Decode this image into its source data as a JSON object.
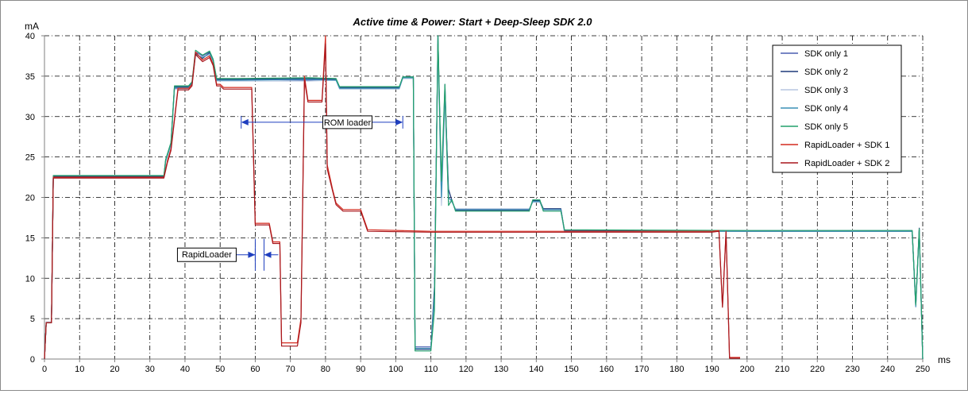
{
  "chart_data": {
    "type": "line",
    "title": "Active time & Power:  Start + Deep-Sleep SDK 2.0",
    "ylabel": "mA",
    "xlabel": "ms",
    "xlim": [
      0,
      250
    ],
    "ylim": [
      0,
      40
    ],
    "x_ticks": [
      0,
      10,
      20,
      30,
      40,
      50,
      60,
      70,
      80,
      90,
      100,
      110,
      120,
      130,
      140,
      150,
      160,
      170,
      180,
      190,
      200,
      210,
      220,
      230,
      240,
      250
    ],
    "y_ticks": [
      0,
      5,
      10,
      15,
      20,
      25,
      30,
      35,
      40
    ],
    "grid": true,
    "legend_position": "top-right",
    "series": [
      {
        "name": "SDK only 1",
        "color": "#4a5fb0",
        "points": [
          [
            0,
            0
          ],
          [
            0.5,
            4.5
          ],
          [
            2,
            4.5
          ],
          [
            2.5,
            22.5
          ],
          [
            34,
            22.5
          ],
          [
            34.5,
            24.5
          ],
          [
            36,
            26.5
          ],
          [
            37,
            33.5
          ],
          [
            41,
            33.5
          ],
          [
            42,
            34
          ],
          [
            43,
            38
          ],
          [
            45,
            37.5
          ],
          [
            47,
            38
          ],
          [
            48,
            37
          ],
          [
            49,
            34.5
          ],
          [
            55,
            34.5
          ],
          [
            56,
            34.6
          ],
          [
            75,
            34.5
          ],
          [
            83,
            34.6
          ],
          [
            84,
            33.5
          ],
          [
            101,
            33.5
          ],
          [
            102,
            34.8
          ],
          [
            105,
            34.8
          ],
          [
            105.5,
            1.5
          ],
          [
            110,
            1.5
          ],
          [
            111,
            8
          ],
          [
            112,
            40
          ],
          [
            113,
            20
          ],
          [
            114,
            34
          ],
          [
            115,
            20
          ],
          [
            116,
            19.5
          ],
          [
            117,
            18.5
          ],
          [
            138,
            18.5
          ],
          [
            139,
            19.5
          ],
          [
            141,
            19.5
          ],
          [
            142,
            18.5
          ],
          [
            147,
            18.5
          ],
          [
            148,
            15.8
          ],
          [
            170,
            15.8
          ],
          [
            200,
            15.9
          ],
          [
            247,
            15.9
          ],
          [
            248,
            6.5
          ],
          [
            249,
            16
          ],
          [
            250,
            0
          ]
        ]
      },
      {
        "name": "SDK only 2",
        "color": "#1f3a7a",
        "points": [
          [
            0,
            0
          ],
          [
            0.5,
            4.5
          ],
          [
            2,
            4.5
          ],
          [
            2.5,
            22.6
          ],
          [
            34,
            22.6
          ],
          [
            34.5,
            24.6
          ],
          [
            36,
            26.7
          ],
          [
            37,
            33.7
          ],
          [
            41,
            33.7
          ],
          [
            42,
            34.2
          ],
          [
            43,
            37.8
          ],
          [
            45,
            37.2
          ],
          [
            47,
            37.9
          ],
          [
            48,
            37
          ],
          [
            49,
            34.6
          ],
          [
            55,
            34.6
          ],
          [
            75,
            34.7
          ],
          [
            83,
            34.6
          ],
          [
            84,
            33.6
          ],
          [
            101,
            33.6
          ],
          [
            102,
            34.9
          ],
          [
            105,
            34.9
          ],
          [
            105.5,
            1.2
          ],
          [
            110,
            1.2
          ],
          [
            111,
            9
          ],
          [
            112,
            39
          ],
          [
            113,
            21
          ],
          [
            114,
            33
          ],
          [
            115,
            21
          ],
          [
            116,
            19.6
          ],
          [
            117,
            18.4
          ],
          [
            138,
            18.4
          ],
          [
            139,
            19.6
          ],
          [
            141,
            19.6
          ],
          [
            142,
            18.6
          ],
          [
            147,
            18.6
          ],
          [
            148,
            15.9
          ],
          [
            200,
            15.8
          ],
          [
            247,
            15.8
          ],
          [
            248,
            6.6
          ],
          [
            249,
            16.2
          ],
          [
            250,
            0
          ]
        ]
      },
      {
        "name": "SDK only 3",
        "color": "#b7c6e0",
        "points": [
          [
            0,
            0
          ],
          [
            0.5,
            4.6
          ],
          [
            2,
            4.6
          ],
          [
            2.5,
            22.4
          ],
          [
            34,
            22.4
          ],
          [
            34.5,
            24.4
          ],
          [
            36,
            26.4
          ],
          [
            37,
            33.4
          ],
          [
            41,
            33.4
          ],
          [
            42,
            33.9
          ],
          [
            43,
            37.6
          ],
          [
            45,
            37.4
          ],
          [
            47,
            37.6
          ],
          [
            48,
            36.8
          ],
          [
            49,
            34.4
          ],
          [
            55,
            34.4
          ],
          [
            75,
            34.4
          ],
          [
            83,
            34.5
          ],
          [
            84,
            33.4
          ],
          [
            101,
            33.4
          ],
          [
            102,
            34.7
          ],
          [
            105,
            34.7
          ],
          [
            105.5,
            1.4
          ],
          [
            110,
            1.4
          ],
          [
            111,
            7
          ],
          [
            112,
            38
          ],
          [
            113,
            19
          ],
          [
            114,
            32
          ],
          [
            115,
            19.5
          ],
          [
            116,
            19.4
          ],
          [
            117,
            18.6
          ],
          [
            138,
            18.6
          ],
          [
            139,
            19.4
          ],
          [
            141,
            19.4
          ],
          [
            142,
            18.4
          ],
          [
            147,
            18.4
          ],
          [
            148,
            15.7
          ],
          [
            200,
            15.9
          ],
          [
            247,
            15.9
          ],
          [
            248,
            6.4
          ],
          [
            249,
            15.8
          ],
          [
            250,
            0
          ]
        ]
      },
      {
        "name": "SDK only 4",
        "color": "#3a8fb5",
        "points": [
          [
            0,
            0
          ],
          [
            0.5,
            4.5
          ],
          [
            2,
            4.5
          ],
          [
            2.5,
            22.5
          ],
          [
            34,
            22.5
          ],
          [
            34.5,
            24.5
          ],
          [
            36,
            26.6
          ],
          [
            37,
            33.6
          ],
          [
            41,
            33.6
          ],
          [
            42,
            34.1
          ],
          [
            43,
            37.7
          ],
          [
            45,
            37.3
          ],
          [
            47,
            37.8
          ],
          [
            48,
            36.9
          ],
          [
            49,
            34.5
          ],
          [
            55,
            34.5
          ],
          [
            75,
            34.6
          ],
          [
            83,
            34.5
          ],
          [
            84,
            33.5
          ],
          [
            101,
            33.5
          ],
          [
            102,
            34.8
          ],
          [
            105,
            34.8
          ],
          [
            105.5,
            1.3
          ],
          [
            110,
            1.3
          ],
          [
            111,
            8
          ],
          [
            112,
            40
          ],
          [
            113,
            20
          ],
          [
            114,
            33
          ],
          [
            115,
            20
          ],
          [
            116,
            19.5
          ],
          [
            117,
            18.5
          ],
          [
            138,
            18.5
          ],
          [
            139,
            19.5
          ],
          [
            141,
            19.5
          ],
          [
            142,
            18.5
          ],
          [
            147,
            18.5
          ],
          [
            148,
            15.8
          ],
          [
            200,
            15.8
          ],
          [
            247,
            15.8
          ],
          [
            248,
            6.5
          ],
          [
            249,
            16
          ],
          [
            250,
            0
          ]
        ]
      },
      {
        "name": "SDK only 5",
        "color": "#22a06b",
        "points": [
          [
            0,
            0
          ],
          [
            0.5,
            4.5
          ],
          [
            2,
            4.5
          ],
          [
            2.5,
            22.7
          ],
          [
            34,
            22.7
          ],
          [
            34.5,
            24.7
          ],
          [
            36,
            26.8
          ],
          [
            37,
            33.8
          ],
          [
            41,
            33.8
          ],
          [
            42,
            34.3
          ],
          [
            43,
            38.2
          ],
          [
            45,
            37.6
          ],
          [
            47,
            38.1
          ],
          [
            48,
            37.1
          ],
          [
            49,
            34.7
          ],
          [
            55,
            34.7
          ],
          [
            75,
            34.8
          ],
          [
            83,
            34.7
          ],
          [
            84,
            33.7
          ],
          [
            101,
            33.7
          ],
          [
            102,
            34.9
          ],
          [
            105,
            34.9
          ],
          [
            105.5,
            1.0
          ],
          [
            110,
            1.0
          ],
          [
            111,
            6
          ],
          [
            112,
            40
          ],
          [
            113,
            22
          ],
          [
            114,
            34
          ],
          [
            115,
            19
          ],
          [
            116,
            19.7
          ],
          [
            117,
            18.3
          ],
          [
            138,
            18.3
          ],
          [
            139,
            19.7
          ],
          [
            141,
            19.7
          ],
          [
            142,
            18.3
          ],
          [
            147,
            18.3
          ],
          [
            148,
            16.0
          ],
          [
            200,
            15.9
          ],
          [
            247,
            15.9
          ],
          [
            248,
            6.7
          ],
          [
            249,
            16.1
          ],
          [
            250,
            0
          ]
        ]
      },
      {
        "name": "RapidLoader + SDK 1",
        "color": "#d42a1e",
        "points": [
          [
            0,
            0
          ],
          [
            0.5,
            4.5
          ],
          [
            2,
            4.5
          ],
          [
            2.5,
            22.5
          ],
          [
            34,
            22.5
          ],
          [
            35,
            24.5
          ],
          [
            36,
            26
          ],
          [
            38,
            33.5
          ],
          [
            41,
            33.5
          ],
          [
            42,
            34
          ],
          [
            43,
            38
          ],
          [
            45,
            37
          ],
          [
            47,
            37.5
          ],
          [
            48,
            36.5
          ],
          [
            49,
            34
          ],
          [
            50,
            34
          ],
          [
            51,
            33.6
          ],
          [
            59,
            33.6
          ],
          [
            60,
            16.8
          ],
          [
            64,
            16.8
          ],
          [
            65,
            14.5
          ],
          [
            67,
            14.5
          ],
          [
            67.5,
            2
          ],
          [
            72,
            2
          ],
          [
            73,
            5
          ],
          [
            74,
            35
          ],
          [
            75,
            32
          ],
          [
            79,
            32
          ],
          [
            80,
            40
          ],
          [
            80.5,
            24
          ],
          [
            82,
            21
          ],
          [
            83,
            19.3
          ],
          [
            85,
            18.5
          ],
          [
            90,
            18.5
          ],
          [
            92,
            16
          ],
          [
            110,
            15.8
          ],
          [
            120,
            15.8
          ],
          [
            150,
            15.8
          ],
          [
            190,
            15.8
          ],
          [
            192,
            15.9
          ],
          [
            193,
            6.5
          ],
          [
            194,
            15.8
          ],
          [
            195,
            0.2
          ],
          [
            198,
            0.2
          ]
        ]
      },
      {
        "name": "RapidLoader + SDK 2",
        "color": "#a8171d",
        "points": [
          [
            0,
            0
          ],
          [
            0.5,
            4.5
          ],
          [
            2,
            4.5
          ],
          [
            2.5,
            22.4
          ],
          [
            34,
            22.4
          ],
          [
            35,
            24.3
          ],
          [
            36,
            25.8
          ],
          [
            38,
            33.3
          ],
          [
            41,
            33.3
          ],
          [
            42,
            33.8
          ],
          [
            43,
            37.7
          ],
          [
            45,
            36.8
          ],
          [
            47,
            37.3
          ],
          [
            48,
            36.3
          ],
          [
            49,
            33.8
          ],
          [
            50,
            33.8
          ],
          [
            51,
            33.4
          ],
          [
            59,
            33.4
          ],
          [
            60,
            16.6
          ],
          [
            64,
            16.6
          ],
          [
            65,
            14.3
          ],
          [
            67,
            14.3
          ],
          [
            67.5,
            1.6
          ],
          [
            72,
            1.6
          ],
          [
            73,
            4.5
          ],
          [
            74,
            34.5
          ],
          [
            75,
            31.8
          ],
          [
            79,
            31.8
          ],
          [
            80,
            39
          ],
          [
            80.5,
            23.5
          ],
          [
            82,
            20.8
          ],
          [
            83,
            19.1
          ],
          [
            85,
            18.3
          ],
          [
            90,
            18.3
          ],
          [
            92,
            15.8
          ],
          [
            110,
            15.7
          ],
          [
            150,
            15.7
          ],
          [
            190,
            15.7
          ],
          [
            192,
            15.8
          ],
          [
            193,
            6.4
          ],
          [
            194,
            15.7
          ],
          [
            195,
            0.1
          ],
          [
            198,
            0.1
          ]
        ]
      }
    ],
    "annotations": [
      {
        "text": "ROM loader",
        "x_from": 56,
        "x_to": 102,
        "y": 29.3
      },
      {
        "text": "RapidLoader",
        "x_from": 60,
        "x_to": 62.5,
        "y": 12.9
      }
    ]
  }
}
